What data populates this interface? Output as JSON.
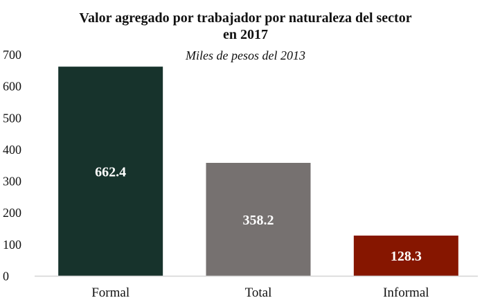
{
  "chart_data": {
    "type": "bar",
    "title_line1": "Valor agregado por trabajador por naturaleza del sector",
    "title_line2": "en 2017",
    "subtitle": "Miles de pesos del 2013",
    "categories": [
      "Formal",
      "Total",
      "Informal"
    ],
    "values": [
      662.4,
      358.2,
      128.3
    ],
    "data_labels": [
      "662.4",
      "358.2",
      "128.3"
    ],
    "colors": [
      "#17332c",
      "#767170",
      "#861600"
    ],
    "ylim": [
      0,
      700
    ],
    "yticks": [
      0,
      100,
      200,
      300,
      400,
      500,
      600,
      700
    ],
    "xlabel": "",
    "ylabel": "",
    "grid": false
  }
}
